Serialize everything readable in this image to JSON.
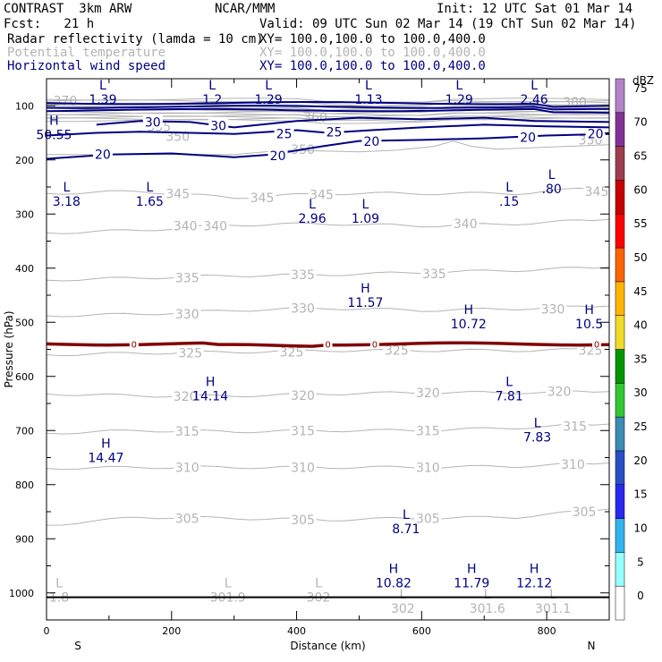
{
  "header": {
    "model": "CONTRAST  3km ARW",
    "org": "NCAR/MMM",
    "init": "Init: 12 UTC Sat 01 Mar 14",
    "fcst": "Fcst:   21 h",
    "valid": "Valid: 09 UTC Sun 02 Mar 14 (19 ChT Sun 02 Mar 14)",
    "fields": [
      {
        "name": "Radar reflectivity (lamda = 10 cm)",
        "xy": "XY= 100.0,100.0 to 100.0,400.0",
        "color": "#000000"
      },
      {
        "name": "Potential temperature",
        "xy": "XY= 100.0,100.0 to 100.0,400.0",
        "color": "#b4b4b4"
      },
      {
        "name": "Horizontal wind speed",
        "xy": "XY= 100.0,100.0 to 100.0,400.0",
        "color": "#000080"
      }
    ]
  },
  "chart_data": {
    "type": "cross-section",
    "xlabel": "Distance (km)",
    "ylabel": "Pressure (hPa)",
    "xlim": [
      0,
      900
    ],
    "ylim": [
      1050,
      50
    ],
    "x_ticks": [
      0,
      200,
      400,
      600,
      800
    ],
    "y_ticks": [
      100,
      200,
      300,
      400,
      500,
      600,
      700,
      800,
      900,
      1000
    ],
    "x_end_labels": {
      "left": "S",
      "right": "N"
    },
    "theta_contours": [
      {
        "label": "345",
        "points": [
          [
            0,
            262
          ],
          [
            150,
            258
          ],
          [
            300,
            270
          ],
          [
            450,
            262
          ],
          [
            600,
            262
          ],
          [
            750,
            262
          ],
          [
            900,
            250
          ]
        ],
        "labels_at": [
          [
            210,
            262
          ],
          [
            345,
            270
          ],
          [
            440,
            264
          ],
          [
            880,
            258
          ]
        ]
      },
      {
        "label": "340",
        "points": [
          [
            0,
            335
          ],
          [
            150,
            330
          ],
          [
            300,
            320
          ],
          [
            450,
            318
          ],
          [
            600,
            322
          ],
          [
            750,
            318
          ],
          [
            900,
            310
          ]
        ],
        "labels_at": [
          [
            222,
            322
          ],
          [
            270,
            322
          ],
          [
            670,
            318
          ]
        ]
      },
      {
        "label": "335",
        "points": [
          [
            0,
            422
          ],
          [
            150,
            418
          ],
          [
            300,
            414
          ],
          [
            450,
            412
          ],
          [
            600,
            408
          ],
          [
            750,
            404
          ],
          [
            900,
            398
          ]
        ],
        "labels_at": [
          [
            225,
            418
          ],
          [
            410,
            412
          ],
          [
            620,
            410
          ]
        ]
      },
      {
        "label": "330",
        "points": [
          [
            0,
            488
          ],
          [
            150,
            485
          ],
          [
            300,
            478
          ],
          [
            450,
            474
          ],
          [
            600,
            478
          ],
          [
            750,
            475
          ],
          [
            900,
            470
          ]
        ],
        "labels_at": [
          [
            225,
            485
          ],
          [
            410,
            474
          ],
          [
            810,
            476
          ]
        ]
      },
      {
        "label": "325",
        "points": [
          [
            0,
            560
          ],
          [
            150,
            557
          ],
          [
            300,
            555
          ],
          [
            450,
            552
          ],
          [
            600,
            552
          ],
          [
            750,
            552
          ],
          [
            900,
            550
          ]
        ],
        "labels_at": [
          [
            230,
            557
          ],
          [
            392,
            555
          ],
          [
            560,
            552
          ],
          [
            870,
            552
          ]
        ]
      },
      {
        "label": "320",
        "points": [
          [
            0,
            632
          ],
          [
            150,
            636
          ],
          [
            300,
            636
          ],
          [
            450,
            632
          ],
          [
            600,
            630
          ],
          [
            750,
            630
          ],
          [
            900,
            628
          ]
        ],
        "labels_at": [
          [
            222,
            637
          ],
          [
            410,
            635
          ],
          [
            610,
            630
          ],
          [
            820,
            628
          ]
        ]
      },
      {
        "label": "315",
        "points": [
          [
            0,
            705
          ],
          [
            150,
            700
          ],
          [
            300,
            702
          ],
          [
            450,
            700
          ],
          [
            600,
            700
          ],
          [
            750,
            695
          ],
          [
            900,
            688
          ]
        ],
        "labels_at": [
          [
            225,
            701
          ],
          [
            410,
            700
          ],
          [
            610,
            700
          ],
          [
            845,
            692
          ]
        ]
      },
      {
        "label": "310",
        "points": [
          [
            0,
            770
          ],
          [
            150,
            768
          ],
          [
            300,
            768
          ],
          [
            450,
            768
          ],
          [
            600,
            768
          ],
          [
            750,
            766
          ],
          [
            900,
            760
          ]
        ],
        "labels_at": [
          [
            225,
            768
          ],
          [
            410,
            768
          ],
          [
            610,
            768
          ],
          [
            842,
            762
          ]
        ]
      },
      {
        "label": "305",
        "points": [
          [
            0,
            875
          ],
          [
            150,
            860
          ],
          [
            300,
            862
          ],
          [
            450,
            865
          ],
          [
            600,
            862
          ],
          [
            750,
            860
          ],
          [
            900,
            845
          ]
        ],
        "labels_at": [
          [
            225,
            862
          ],
          [
            410,
            865
          ],
          [
            610,
            862
          ],
          [
            860,
            850
          ]
        ]
      }
    ],
    "theta_upper_labels": [
      {
        "label": "370",
        "x": 30,
        "p": 92
      },
      {
        "label": "360",
        "x": 430,
        "p": 123
      },
      {
        "label": "350",
        "x": 210,
        "p": 158
      },
      {
        "label": "355",
        "x": 180,
        "p": 140
      },
      {
        "label": "350",
        "x": 410,
        "p": 182
      },
      {
        "label": "380",
        "x": 845,
        "p": 95
      },
      {
        "label": "350",
        "x": 870,
        "p": 165
      }
    ],
    "wind_contours": [
      {
        "label": "20",
        "points": [
          [
            0,
            198
          ],
          [
            100,
            190
          ],
          [
            200,
            188
          ],
          [
            300,
            195
          ],
          [
            360,
            190
          ],
          [
            440,
            175
          ],
          [
            500,
            165
          ],
          [
            600,
            163
          ],
          [
            700,
            160
          ],
          [
            800,
            155
          ],
          [
            900,
            152
          ]
        ],
        "labels_at": [
          [
            90,
            190
          ],
          [
            370,
            192
          ],
          [
            520,
            166
          ],
          [
            770,
            158
          ],
          [
            878,
            152
          ]
        ]
      },
      {
        "label": "25",
        "points": [
          [
            0,
            155
          ],
          [
            80,
            150
          ],
          [
            150,
            148
          ],
          [
            230,
            150
          ],
          [
            300,
            152
          ],
          [
            400,
            145
          ],
          [
            450,
            150
          ],
          [
            520,
            145
          ],
          [
            600,
            140
          ],
          [
            700,
            135
          ],
          [
            800,
            138
          ],
          [
            900,
            140
          ]
        ],
        "labels_at": [
          [
            380,
            152
          ],
          [
            460,
            148
          ]
        ]
      },
      {
        "label": "30",
        "points": [
          [
            80,
            135
          ],
          [
            150,
            128
          ],
          [
            230,
            130
          ],
          [
            300,
            140
          ],
          [
            400,
            128
          ],
          [
            500,
            122
          ],
          [
            600,
            125
          ],
          [
            700,
            122
          ],
          [
            780,
            128
          ],
          [
            900,
            130
          ]
        ],
        "labels_at": [
          [
            170,
            130
          ],
          [
            275,
            137
          ]
        ]
      }
    ],
    "wind_upper_bands": [
      95,
      102,
      108
    ],
    "reflectivity_contour": {
      "label": "0",
      "p": 540,
      "label_xs": [
        140,
        450,
        525,
        880
      ]
    },
    "surface_p": 1008,
    "max_min_labels": [
      {
        "type": "L",
        "value": "1.39",
        "x": 90,
        "p": 70,
        "color": "#000080"
      },
      {
        "type": "L",
        "value": "1.2",
        "x": 265,
        "p": 70,
        "color": "#000080"
      },
      {
        "type": "L",
        "value": "1.29",
        "x": 355,
        "p": 70,
        "color": "#000080"
      },
      {
        "type": "L",
        "value": "1.13",
        "x": 515,
        "p": 70,
        "color": "#000080"
      },
      {
        "type": "L",
        "value": "1.29",
        "x": 660,
        "p": 70,
        "color": "#000080"
      },
      {
        "type": "L",
        "value": "2.46",
        "x": 780,
        "p": 70,
        "color": "#000080"
      },
      {
        "type": "H",
        "value": "50.55",
        "x": 12,
        "p": 135,
        "color": "#000080"
      },
      {
        "type": "L",
        "value": "3.18",
        "x": 32,
        "p": 258,
        "color": "#000080"
      },
      {
        "type": "L",
        "value": "1.65",
        "x": 165,
        "p": 258,
        "color": "#000080"
      },
      {
        "type": "L",
        "value": "2.96",
        "x": 425,
        "p": 290,
        "color": "#000080"
      },
      {
        "type": "L",
        "value": "1.09",
        "x": 510,
        "p": 290,
        "color": "#000080"
      },
      {
        "type": "L",
        "value": ".15",
        "x": 740,
        "p": 258,
        "color": "#000080"
      },
      {
        "type": "L",
        "value": ".80",
        "x": 808,
        "p": 235,
        "color": "#000080"
      },
      {
        "type": "H",
        "value": "11.57",
        "x": 510,
        "p": 445,
        "color": "#000080"
      },
      {
        "type": "H",
        "value": "10.72",
        "x": 675,
        "p": 485,
        "color": "#000080"
      },
      {
        "type": "H",
        "value": "10.5",
        "x": 868,
        "p": 485,
        "color": "#000080"
      },
      {
        "type": "H",
        "value": "14.14",
        "x": 262,
        "p": 618,
        "color": "#000080"
      },
      {
        "type": "L",
        "value": "7.81",
        "x": 740,
        "p": 618,
        "color": "#000080"
      },
      {
        "type": "L",
        "value": "7.83",
        "x": 785,
        "p": 694,
        "color": "#000080"
      },
      {
        "type": "H",
        "value": "14.47",
        "x": 95,
        "p": 732,
        "color": "#000080"
      },
      {
        "type": "L",
        "value": "8.71",
        "x": 575,
        "p": 863,
        "color": "#000080"
      },
      {
        "type": "H",
        "value": "10.82",
        "x": 555,
        "p": 963,
        "color": "#000080"
      },
      {
        "type": "H",
        "value": "11.79",
        "x": 680,
        "p": 963,
        "color": "#000080"
      },
      {
        "type": "H",
        "value": "12.12",
        "x": 780,
        "p": 963,
        "color": "#000080"
      },
      {
        "type": "L",
        "value": "1.8",
        "x": 20,
        "p": 990,
        "color": "#b4b4b4"
      },
      {
        "type": "L",
        "value": "301.9",
        "x": 290,
        "p": 990,
        "color": "#b4b4b4"
      },
      {
        "type": "L",
        "value": "302",
        "x": 435,
        "p": 990,
        "color": "#b4b4b4"
      },
      {
        "type": "L",
        "value": "302",
        "x": 570,
        "p": 1010,
        "color": "#b4b4b4"
      },
      {
        "type": "L",
        "value": "301.6",
        "x": 705,
        "p": 1010,
        "color": "#b4b4b4"
      },
      {
        "type": "L",
        "value": "301.1",
        "x": 810,
        "p": 1010,
        "color": "#b4b4b4"
      }
    ],
    "colorbar": {
      "title": "dBZ",
      "levels": [
        "0",
        "5",
        "10",
        "15",
        "20",
        "25",
        "30",
        "35",
        "40",
        "45",
        "50",
        "55",
        "60",
        "65",
        "70",
        "75"
      ],
      "colors": [
        "#ffffff",
        "#96ffff",
        "#32b4f0",
        "#2828f0",
        "#2850c8",
        "#3c8cb4",
        "#32c832",
        "#009600",
        "#f0dc28",
        "#ffb400",
        "#ff6400",
        "#ff0000",
        "#c80000",
        "#a03c50",
        "#823296",
        "#b482c8"
      ]
    },
    "colors": {
      "theta": "#b4b4b4",
      "wind": "#000080",
      "refl": "#800000",
      "axis": "#000000",
      "labels": "#000080"
    }
  }
}
